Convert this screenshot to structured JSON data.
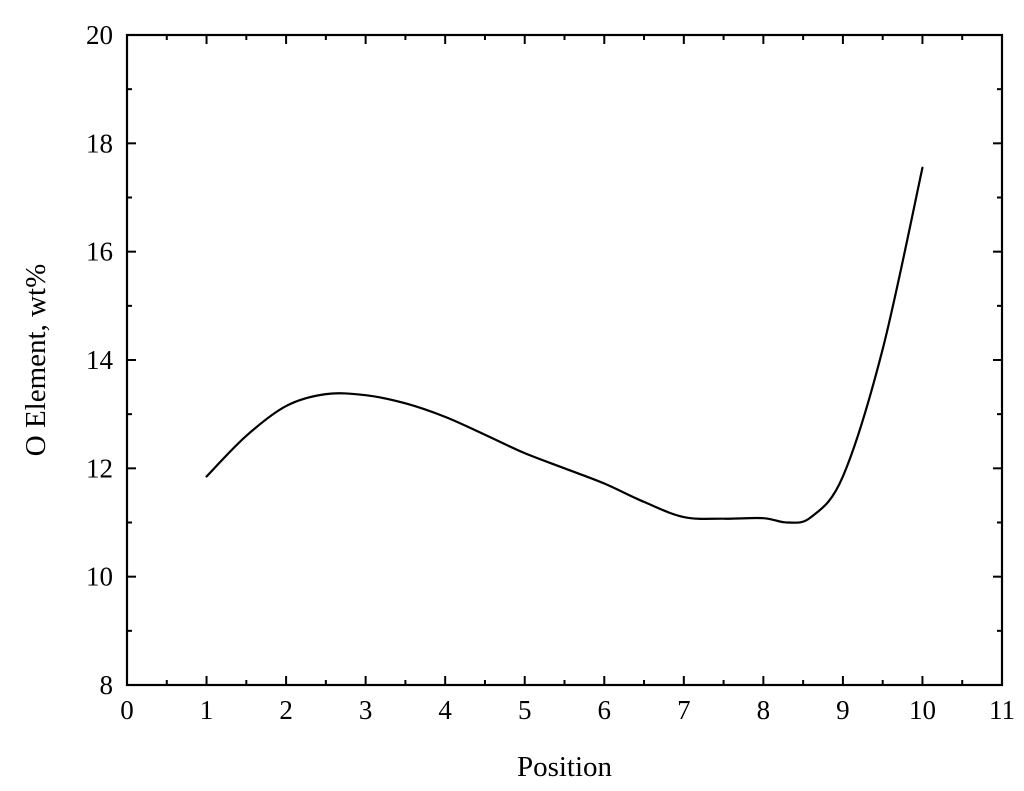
{
  "chart_data": {
    "type": "line",
    "title": "",
    "xlabel": "Position",
    "ylabel": "O Element, wt%",
    "xlim": [
      0,
      11
    ],
    "ylim": [
      8,
      20
    ],
    "xticks": [
      0,
      1,
      2,
      3,
      4,
      5,
      6,
      7,
      8,
      9,
      10,
      11
    ],
    "yticks": [
      8,
      10,
      12,
      14,
      16,
      18,
      20
    ],
    "grid": false,
    "legend": "none",
    "series": [
      {
        "color": "#000000",
        "x": [
          1,
          1.5,
          2,
          2.5,
          3,
          3.5,
          4,
          4.5,
          5,
          5.5,
          6,
          6.5,
          7,
          7.5,
          8,
          8.3,
          8.6,
          9,
          9.5,
          10
        ],
        "y": [
          11.85,
          12.6,
          13.15,
          13.37,
          13.35,
          13.2,
          12.95,
          12.62,
          12.28,
          12.0,
          11.72,
          11.38,
          11.1,
          11.07,
          11.08,
          11.0,
          11.1,
          11.85,
          14.2,
          17.55
        ]
      }
    ]
  }
}
